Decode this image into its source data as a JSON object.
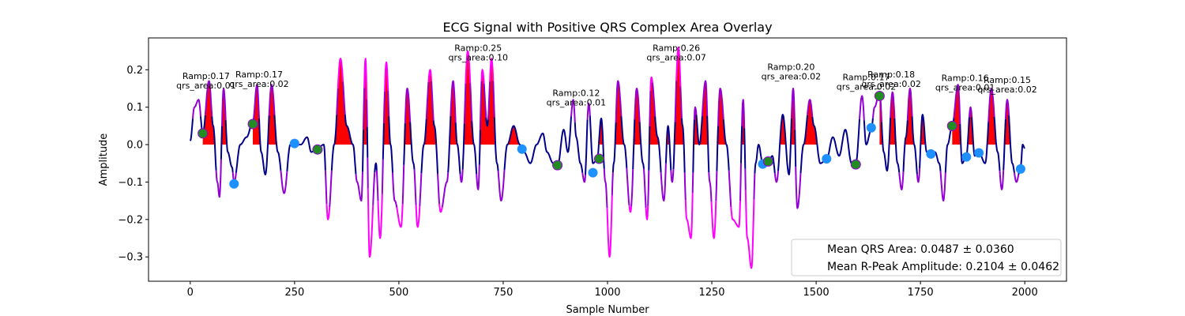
{
  "chart_data": {
    "type": "line",
    "title": "ECG Signal with Positive QRS Complex Area Overlay",
    "xlabel": "Sample Number",
    "ylabel": "Amplitude",
    "xlim": [
      -100,
      2100
    ],
    "ylim": [
      -0.365,
      0.285
    ],
    "xticks": [
      0,
      250,
      500,
      750,
      1000,
      1250,
      1500,
      1750,
      2000
    ],
    "yticks": [
      -0.3,
      -0.2,
      -0.1,
      0.0,
      0.1,
      0.2
    ],
    "ytick_labels": [
      "−0.3",
      "−0.2",
      "−0.1",
      "0.0",
      "0.1",
      "0.2"
    ],
    "colors": {
      "signal_quiet": "#00008b",
      "signal_mid": "#9400d3",
      "signal_active": "#ff00ff",
      "area_fill": "#ff0000",
      "r_peak_marker": "#228b22",
      "s_point_marker": "#1e90ff"
    },
    "signal_keypoints": [
      [
        0,
        0.01
      ],
      [
        10,
        0.1
      ],
      [
        20,
        0.12
      ],
      [
        30,
        0.03
      ],
      [
        45,
        0.17
      ],
      [
        55,
        0.05
      ],
      [
        65,
        -0.1
      ],
      [
        70,
        -0.14
      ],
      [
        80,
        0.15
      ],
      [
        90,
        -0.02
      ],
      [
        100,
        -0.06
      ],
      [
        105,
        -0.1
      ],
      [
        120,
        0.0
      ],
      [
        135,
        0.02
      ],
      [
        150,
        0.06
      ],
      [
        160,
        0.16
      ],
      [
        170,
        -0.02
      ],
      [
        180,
        -0.08
      ],
      [
        195,
        0.16
      ],
      [
        210,
        -0.02
      ],
      [
        225,
        -0.13
      ],
      [
        240,
        0.0
      ],
      [
        250,
        0.0
      ],
      [
        265,
        0.0
      ],
      [
        280,
        0.02
      ],
      [
        290,
        -0.02
      ],
      [
        305,
        -0.01
      ],
      [
        320,
        0.0
      ],
      [
        330,
        -0.2
      ],
      [
        345,
        0.0
      ],
      [
        360,
        0.23
      ],
      [
        375,
        0.05
      ],
      [
        390,
        0.0
      ],
      [
        400,
        -0.1
      ],
      [
        410,
        -0.15
      ],
      [
        420,
        0.23
      ],
      [
        430,
        -0.3
      ],
      [
        445,
        -0.05
      ],
      [
        455,
        -0.25
      ],
      [
        470,
        0.22
      ],
      [
        480,
        0.0
      ],
      [
        490,
        -0.15
      ],
      [
        505,
        -0.22
      ],
      [
        520,
        0.15
      ],
      [
        535,
        -0.05
      ],
      [
        545,
        -0.22
      ],
      [
        560,
        0.0
      ],
      [
        575,
        0.2
      ],
      [
        585,
        0.05
      ],
      [
        600,
        -0.18
      ],
      [
        615,
        -0.1
      ],
      [
        630,
        0.17
      ],
      [
        640,
        0.0
      ],
      [
        650,
        -0.1
      ],
      [
        665,
        0.25
      ],
      [
        680,
        0.0
      ],
      [
        690,
        -0.12
      ],
      [
        700,
        0.2
      ],
      [
        712,
        0.05
      ],
      [
        722,
        0.23
      ],
      [
        735,
        -0.05
      ],
      [
        745,
        -0.15
      ],
      [
        760,
        0.0
      ],
      [
        775,
        0.05
      ],
      [
        790,
        0.0
      ],
      [
        800,
        -0.02
      ],
      [
        815,
        -0.05
      ],
      [
        830,
        0.0
      ],
      [
        845,
        0.03
      ],
      [
        855,
        -0.02
      ],
      [
        870,
        -0.05
      ],
      [
        880,
        -0.06
      ],
      [
        895,
        0.04
      ],
      [
        905,
        -0.02
      ],
      [
        918,
        0.12
      ],
      [
        925,
        0.02
      ],
      [
        935,
        -0.05
      ],
      [
        945,
        -0.1
      ],
      [
        955,
        0.11
      ],
      [
        965,
        -0.05
      ],
      [
        975,
        -0.04
      ],
      [
        985,
        0.07
      ],
      [
        995,
        -0.1
      ],
      [
        1005,
        -0.3
      ],
      [
        1015,
        -0.05
      ],
      [
        1025,
        0.17
      ],
      [
        1040,
        0.0
      ],
      [
        1055,
        -0.18
      ],
      [
        1070,
        0.15
      ],
      [
        1085,
        -0.05
      ],
      [
        1095,
        -0.2
      ],
      [
        1105,
        0.18
      ],
      [
        1120,
        0.02
      ],
      [
        1135,
        -0.15
      ],
      [
        1145,
        0.05
      ],
      [
        1155,
        -0.1
      ],
      [
        1170,
        0.26
      ],
      [
        1180,
        0.05
      ],
      [
        1190,
        -0.2
      ],
      [
        1200,
        -0.25
      ],
      [
        1210,
        0.1
      ],
      [
        1220,
        0.0
      ],
      [
        1235,
        0.17
      ],
      [
        1245,
        -0.1
      ],
      [
        1255,
        -0.25
      ],
      [
        1270,
        0.15
      ],
      [
        1285,
        0.0
      ],
      [
        1300,
        -0.2
      ],
      [
        1315,
        -0.22
      ],
      [
        1325,
        0.12
      ],
      [
        1335,
        -0.25
      ],
      [
        1345,
        -0.33
      ],
      [
        1355,
        -0.05
      ],
      [
        1362,
        0.0
      ],
      [
        1372,
        -0.05
      ],
      [
        1385,
        -0.05
      ],
      [
        1395,
        -0.03
      ],
      [
        1405,
        -0.1
      ],
      [
        1420,
        0.08
      ],
      [
        1435,
        -0.08
      ],
      [
        1445,
        0.15
      ],
      [
        1455,
        -0.17
      ],
      [
        1470,
        0.0
      ],
      [
        1485,
        0.12
      ],
      [
        1495,
        0.05
      ],
      [
        1510,
        -0.05
      ],
      [
        1525,
        -0.04
      ],
      [
        1540,
        0.02
      ],
      [
        1555,
        -0.03
      ],
      [
        1570,
        0.04
      ],
      [
        1585,
        -0.05
      ],
      [
        1595,
        -0.05
      ],
      [
        1610,
        0.13
      ],
      [
        1620,
        0.0
      ],
      [
        1632,
        0.04
      ],
      [
        1640,
        0.1
      ],
      [
        1652,
        0.14
      ],
      [
        1662,
        -0.02
      ],
      [
        1670,
        -0.07
      ],
      [
        1683,
        0.14
      ],
      [
        1695,
        -0.05
      ],
      [
        1705,
        -0.12
      ],
      [
        1715,
        0.02
      ],
      [
        1725,
        0.15
      ],
      [
        1735,
        0.0
      ],
      [
        1745,
        -0.1
      ],
      [
        1755,
        0.08
      ],
      [
        1765,
        -0.02
      ],
      [
        1775,
        -0.03
      ],
      [
        1785,
        -0.02
      ],
      [
        1795,
        -0.05
      ],
      [
        1805,
        -0.15
      ],
      [
        1815,
        0.0
      ],
      [
        1826,
        0.05
      ],
      [
        1840,
        0.16
      ],
      [
        1850,
        -0.05
      ],
      [
        1860,
        -0.03
      ],
      [
        1870,
        0.1
      ],
      [
        1880,
        -0.03
      ],
      [
        1890,
        -0.02
      ],
      [
        1905,
        -0.05
      ],
      [
        1920,
        0.15
      ],
      [
        1935,
        -0.02
      ],
      [
        1945,
        -0.12
      ],
      [
        1958,
        0.12
      ],
      [
        1970,
        -0.05
      ],
      [
        1980,
        -0.1
      ],
      [
        1990,
        -0.06
      ],
      [
        1995,
        0.0
      ],
      [
        2000,
        -0.01
      ]
    ],
    "r_peaks": [
      {
        "x": 30,
        "y": 0.03
      },
      {
        "x": 150,
        "y": 0.055
      },
      {
        "x": 305,
        "y": -0.013
      },
      {
        "x": 880,
        "y": -0.055
      },
      {
        "x": 980,
        "y": -0.038
      },
      {
        "x": 1385,
        "y": -0.045
      },
      {
        "x": 1595,
        "y": -0.053
      },
      {
        "x": 1652,
        "y": 0.13
      },
      {
        "x": 1826,
        "y": 0.05
      }
    ],
    "s_points": [
      {
        "x": 105,
        "y": -0.105
      },
      {
        "x": 250,
        "y": 0.003
      },
      {
        "x": 795,
        "y": -0.012
      },
      {
        "x": 965,
        "y": -0.075
      },
      {
        "x": 1372,
        "y": -0.052
      },
      {
        "x": 1525,
        "y": -0.038
      },
      {
        "x": 1632,
        "y": 0.045
      },
      {
        "x": 1775,
        "y": -0.025
      },
      {
        "x": 1860,
        "y": -0.033
      },
      {
        "x": 1890,
        "y": -0.022
      },
      {
        "x": 1990,
        "y": -0.065
      }
    ],
    "qrs_regions": [
      {
        "x": [
          30,
          100
        ]
      },
      {
        "x": [
          150,
          250
        ]
      },
      {
        "x": [
          305,
          795
        ]
      },
      {
        "x": [
          980,
          1372
        ]
      },
      {
        "x": [
          1385,
          1525
        ]
      },
      {
        "x": [
          1652,
          1775
        ]
      },
      {
        "x": [
          1826,
          2000
        ]
      }
    ],
    "annotations": [
      {
        "x": 38,
        "y": 0.175,
        "lines": [
          "Ramp:0.17",
          "qrs_area:0.01"
        ]
      },
      {
        "x": 165,
        "y": 0.18,
        "lines": [
          "Ramp:0.17",
          "qrs_area:0.02"
        ]
      },
      {
        "x": 690,
        "y": 0.25,
        "lines": [
          "Ramp:0.25",
          "qrs_area:0.10"
        ]
      },
      {
        "x": 925,
        "y": 0.13,
        "lines": [
          "Ramp:0.12",
          "qrs_area:0.01"
        ]
      },
      {
        "x": 1165,
        "y": 0.25,
        "lines": [
          "Ramp:0.26",
          "qrs_area:0.07"
        ]
      },
      {
        "x": 1440,
        "y": 0.2,
        "lines": [
          "Ramp:0.20",
          "qrs_area:0.02"
        ]
      },
      {
        "x": 1620,
        "y": 0.172,
        "lines": [
          "Ramp:0.17",
          "qrs_area:0.02"
        ]
      },
      {
        "x": 1680,
        "y": 0.18,
        "lines": [
          "Ramp:0.18",
          "qrs_area:0.02"
        ]
      },
      {
        "x": 1857,
        "y": 0.17,
        "lines": [
          "Ramp:0.16",
          "qrs_area:0.01"
        ]
      },
      {
        "x": 1958,
        "y": 0.165,
        "lines": [
          "Ramp:0.15",
          "qrs_area:0.02"
        ]
      }
    ],
    "legend": {
      "location": "lower-right",
      "entries": [
        "Mean QRS Area: 0.0487 ± 0.0360",
        "Mean R-Peak Amplitude: 0.2104 ± 0.0462"
      ]
    }
  }
}
